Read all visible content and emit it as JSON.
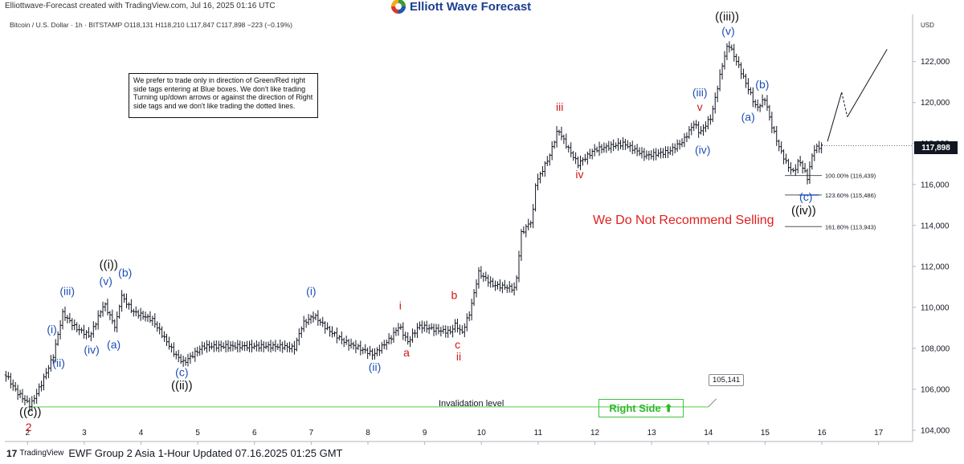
{
  "header": {
    "created_by": "Elliottwave-Forecast created with TradingView.com, Jul 16, 2025 01:16 UTC",
    "brand": "Elliott Wave Forecast",
    "symbol_line": "Bitcoin / U.S. Dollar · 1h · BITSTAMP  O118,131  H118,210  L117,847  C117,898  −223 (−0.19%)"
  },
  "note_box": {
    "text": "We prefer to trade only in direction of Green/Red right side tags entering at Blue boxes. We don't like trading Turning up/down arrows or against the direction of Right side tags and we don't like trading the dotted lines."
  },
  "footer": {
    "tv_mark": "17",
    "tv_name": "TradingView",
    "title": "EWF Group 2 Asia 1-Hour Updated 07.16.2025 01:25 GMT"
  },
  "labels": {
    "no_sell": "We Do Not Recommend Selling",
    "invalidation": "Invalidation level",
    "invalidation_value": "105,141",
    "right_side": "Right Side",
    "right_side_arrow": "⬆",
    "currency": "USD",
    "last_price": "117,898"
  },
  "colors": {
    "price_bars": "#131722",
    "blue_labels": "#1f4fb5",
    "red_labels": "#d31616",
    "black_labels": "#111111",
    "invalidation_line": "#79d66d",
    "right_side_tag": "#3ec43a"
  },
  "chart_data": {
    "type": "ohlc",
    "title": "Bitcoin / U.S. Dollar · 1h · BITSTAMP",
    "x_unit": "day of July 2025",
    "xlim": [
      1.6,
      17.6
    ],
    "ylim": [
      103450,
      124300
    ],
    "x_ticks": [
      2,
      3,
      4,
      5,
      6,
      7,
      8,
      9,
      10,
      11,
      12,
      13,
      14,
      15,
      16,
      17
    ],
    "y_ticks": [
      104000,
      106000,
      108000,
      110000,
      112000,
      114000,
      116000,
      118000,
      120000,
      122000
    ],
    "price_path": [
      [
        1.62,
        106700
      ],
      [
        1.8,
        105900
      ],
      [
        2.05,
        105200
      ],
      [
        2.25,
        106300
      ],
      [
        2.45,
        107600
      ],
      [
        2.62,
        109700
      ],
      [
        2.85,
        109000
      ],
      [
        3.1,
        108600
      ],
      [
        3.35,
        110200
      ],
      [
        3.55,
        109000
      ],
      [
        3.65,
        110600
      ],
      [
        3.85,
        109800
      ],
      [
        4.2,
        109400
      ],
      [
        4.6,
        107700
      ],
      [
        4.75,
        107300
      ],
      [
        5.1,
        108100
      ],
      [
        6.0,
        108100
      ],
      [
        6.5,
        108100
      ],
      [
        6.7,
        108000
      ],
      [
        6.85,
        109200
      ],
      [
        7.05,
        109600
      ],
      [
        7.3,
        108900
      ],
      [
        7.6,
        108300
      ],
      [
        8.1,
        107700
      ],
      [
        8.4,
        108500
      ],
      [
        8.55,
        109100
      ],
      [
        8.7,
        108300
      ],
      [
        8.9,
        109100
      ],
      [
        9.2,
        108900
      ],
      [
        9.45,
        108800
      ],
      [
        9.55,
        109200
      ],
      [
        9.65,
        108700
      ],
      [
        9.8,
        109800
      ],
      [
        9.95,
        111700
      ],
      [
        10.2,
        111100
      ],
      [
        10.6,
        110900
      ],
      [
        10.7,
        113600
      ],
      [
        10.9,
        114300
      ],
      [
        10.95,
        116000
      ],
      [
        11.2,
        117400
      ],
      [
        11.35,
        118700
      ],
      [
        11.5,
        117900
      ],
      [
        11.7,
        117000
      ],
      [
        12.0,
        117700
      ],
      [
        12.5,
        118000
      ],
      [
        12.9,
        117400
      ],
      [
        13.3,
        117600
      ],
      [
        13.55,
        118100
      ],
      [
        13.75,
        119000
      ],
      [
        13.85,
        118500
      ],
      [
        14.05,
        119300
      ],
      [
        14.25,
        121900
      ],
      [
        14.35,
        122900
      ],
      [
        14.5,
        122000
      ],
      [
        14.7,
        120700
      ],
      [
        14.85,
        119700
      ],
      [
        15.0,
        120200
      ],
      [
        15.1,
        119000
      ],
      [
        15.25,
        117800
      ],
      [
        15.4,
        116900
      ],
      [
        15.5,
        116600
      ],
      [
        15.6,
        117200
      ],
      [
        15.75,
        116300
      ],
      [
        15.85,
        117700
      ],
      [
        16.0,
        117900
      ]
    ],
    "projection": {
      "solid": [
        [
          16.1,
          118100
        ],
        [
          16.35,
          120500
        ]
      ],
      "dotted": [
        [
          16.35,
          120500
        ],
        [
          16.45,
          119300
        ]
      ],
      "solid_after": [
        [
          16.45,
          119300
        ],
        [
          17.15,
          122600
        ]
      ]
    },
    "last_price": 117898,
    "invalidation": {
      "price": 105141,
      "x_start": 2.0,
      "x_end": 14.0
    },
    "fib_levels": [
      {
        "label": "100.00% (116,439)",
        "price": 116439
      },
      {
        "label": "123.60% (115,486)",
        "price": 115486
      },
      {
        "label": "161.80% (113,943)",
        "price": 113943
      }
    ],
    "wave_labels": [
      {
        "text": "((c))",
        "x": 2.05,
        "y": 104700,
        "color": "black"
      },
      {
        "text": "2",
        "x": 2.02,
        "y": 103950,
        "color": "red"
      },
      {
        "text": "(i)",
        "x": 2.43,
        "y": 108750,
        "color": "blue"
      },
      {
        "text": "(ii)",
        "x": 2.55,
        "y": 107100,
        "color": "blue"
      },
      {
        "text": "(iii)",
        "x": 2.7,
        "y": 110600,
        "color": "blue"
      },
      {
        "text": "(iv)",
        "x": 3.13,
        "y": 107750,
        "color": "blue"
      },
      {
        "text": "(v)",
        "x": 3.38,
        "y": 111100,
        "color": "blue"
      },
      {
        "text": "((i))",
        "x": 3.43,
        "y": 111900,
        "color": "black"
      },
      {
        "text": "(b)",
        "x": 3.72,
        "y": 111500,
        "color": "blue"
      },
      {
        "text": "(a)",
        "x": 3.52,
        "y": 108000,
        "color": "blue"
      },
      {
        "text": "(c)",
        "x": 4.72,
        "y": 106650,
        "color": "blue"
      },
      {
        "text": "((ii))",
        "x": 4.72,
        "y": 106000,
        "color": "black"
      },
      {
        "text": "(i)",
        "x": 7.0,
        "y": 110600,
        "color": "blue"
      },
      {
        "text": "(ii)",
        "x": 8.12,
        "y": 106900,
        "color": "blue"
      },
      {
        "text": "i",
        "x": 8.57,
        "y": 109900,
        "color": "red"
      },
      {
        "text": "a",
        "x": 8.68,
        "y": 107600,
        "color": "red"
      },
      {
        "text": "b",
        "x": 9.52,
        "y": 110400,
        "color": "red"
      },
      {
        "text": "c",
        "x": 9.58,
        "y": 108000,
        "color": "red"
      },
      {
        "text": "ii",
        "x": 9.6,
        "y": 107400,
        "color": "red"
      },
      {
        "text": "iii",
        "x": 11.38,
        "y": 119600,
        "color": "red"
      },
      {
        "text": "iv",
        "x": 11.73,
        "y": 116300,
        "color": "red"
      },
      {
        "text": "(iii)",
        "x": 13.85,
        "y": 120300,
        "color": "blue"
      },
      {
        "text": "v",
        "x": 13.85,
        "y": 119600,
        "color": "red"
      },
      {
        "text": "(iv)",
        "x": 13.9,
        "y": 117500,
        "color": "blue"
      },
      {
        "text": "((iii))",
        "x": 14.33,
        "y": 124000,
        "color": "black"
      },
      {
        "text": "(v)",
        "x": 14.35,
        "y": 123300,
        "color": "blue"
      },
      {
        "text": "(b)",
        "x": 14.95,
        "y": 120700,
        "color": "blue"
      },
      {
        "text": "(a)",
        "x": 14.7,
        "y": 119100,
        "color": "blue"
      },
      {
        "text": "(c)",
        "x": 15.72,
        "y": 115200,
        "color": "blue"
      },
      {
        "text": "((iv))",
        "x": 15.68,
        "y": 114550,
        "color": "black"
      }
    ]
  }
}
